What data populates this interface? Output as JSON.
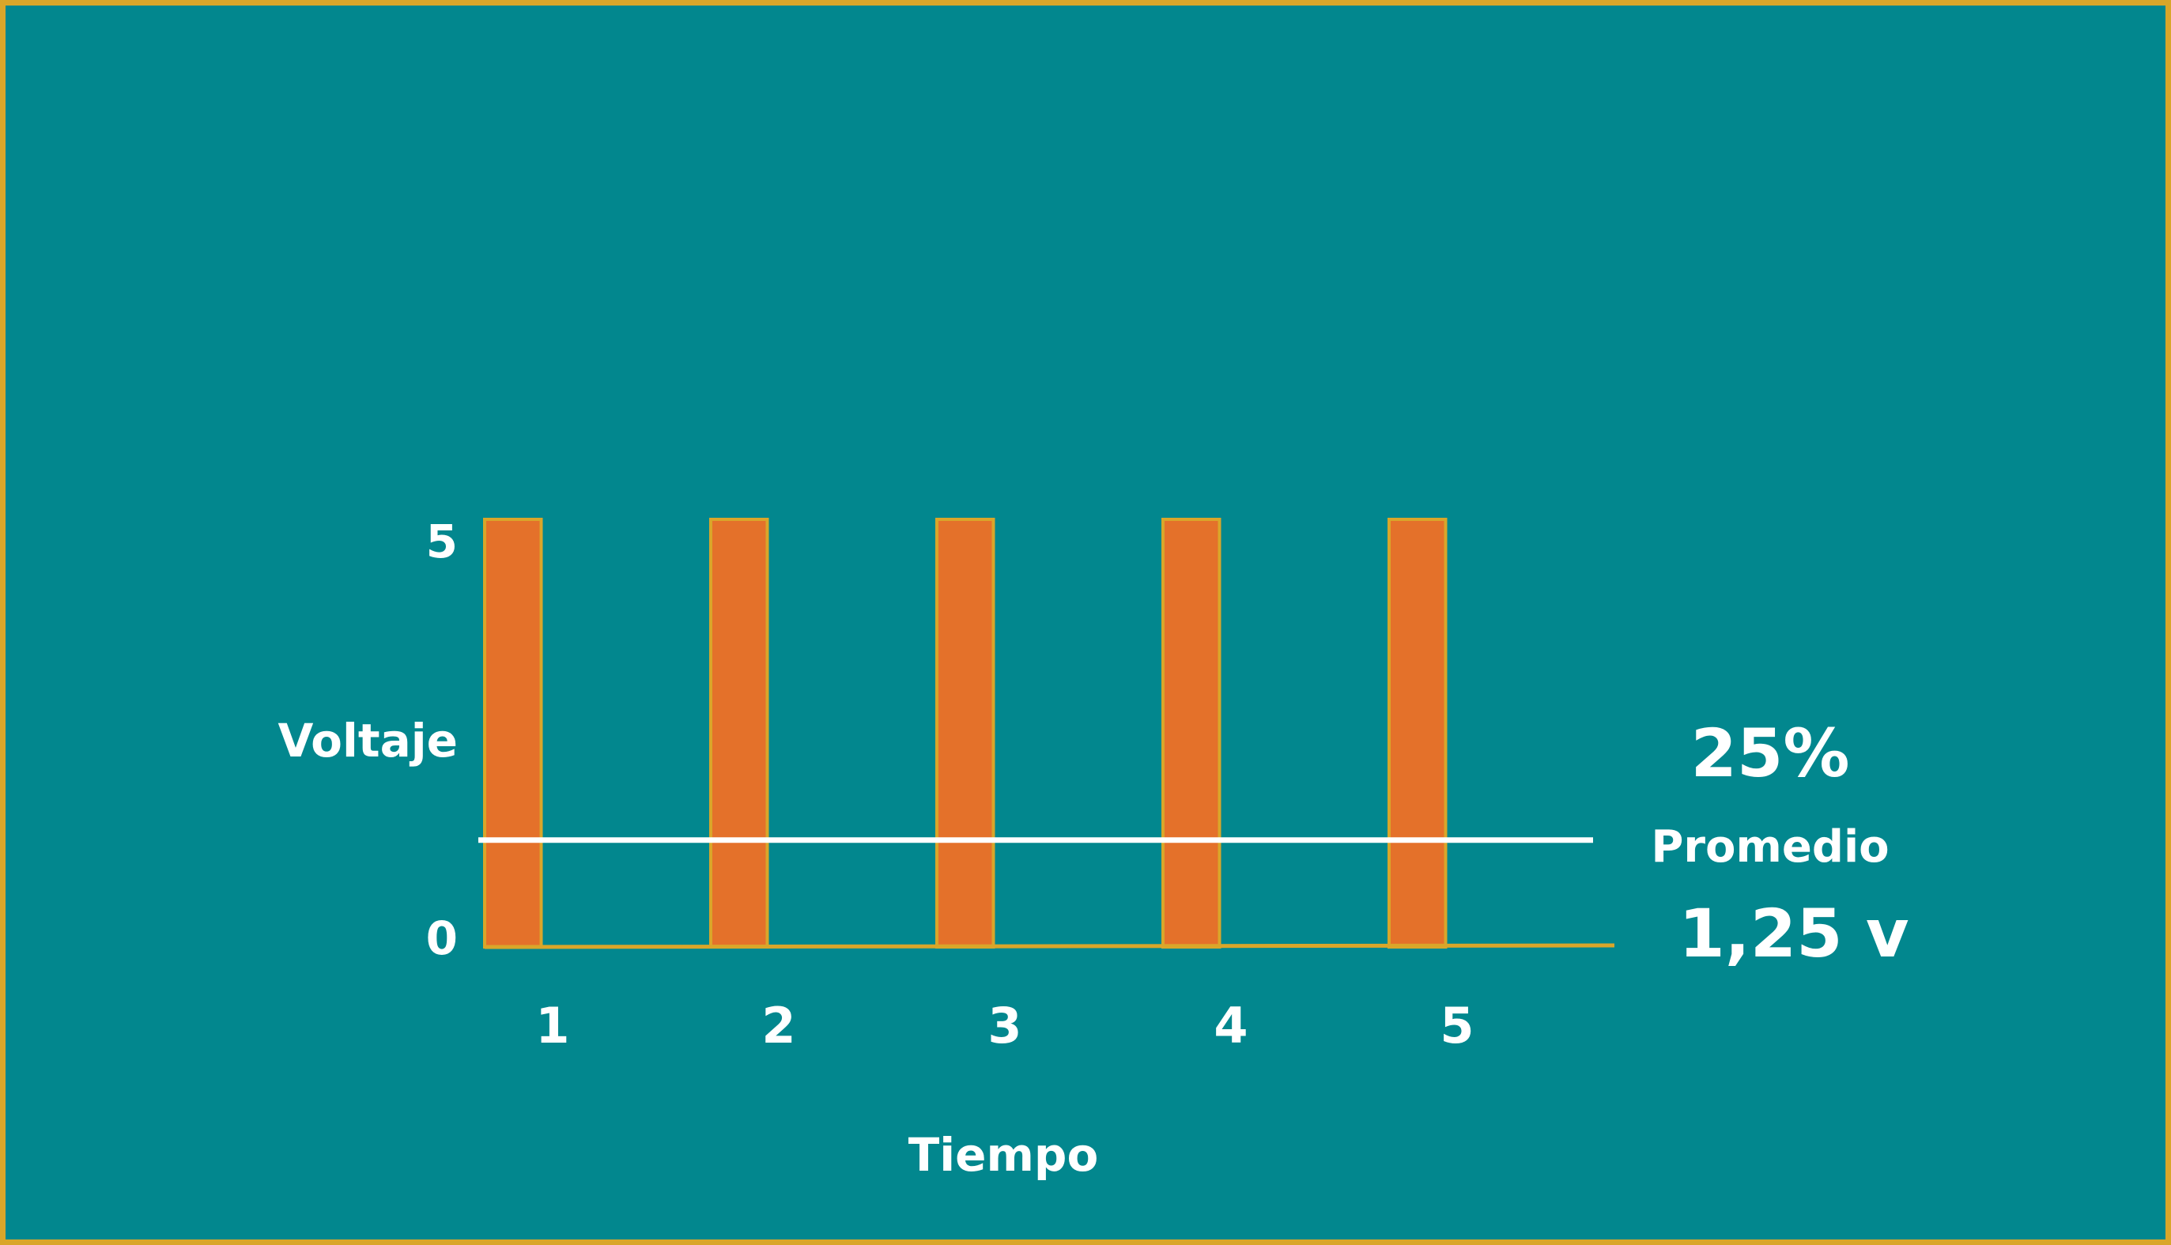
{
  "chart_data": {
    "type": "bar",
    "title": "",
    "ylabel": "Voltaje",
    "xlabel": "Tiempo",
    "y_ticks": [
      "5",
      "0"
    ],
    "ylim": [
      0,
      5
    ],
    "x_ticks": [
      "1",
      "2",
      "3",
      "4",
      "5"
    ],
    "pulses": [
      {
        "start": 0.0,
        "end": 0.25,
        "value": 5
      },
      {
        "start": 1.0,
        "end": 1.25,
        "value": 5
      },
      {
        "start": 2.0,
        "end": 2.25,
        "value": 5
      },
      {
        "start": 3.0,
        "end": 3.25,
        "value": 5
      },
      {
        "start": 4.0,
        "end": 4.25,
        "value": 5
      }
    ],
    "average": {
      "value": 1.25,
      "label": "Promedio",
      "value_label": "1,25 v"
    },
    "duty_cycle_label": "25%",
    "grid": false,
    "colors": {
      "background": "#02878E",
      "border": "#D9A62A",
      "bar_fill": "#E4712A",
      "bar_stroke": "#D9A62A",
      "axis": "#D9A62A",
      "average_line": "#FFFFFF",
      "text": "#FFFFFF"
    }
  }
}
